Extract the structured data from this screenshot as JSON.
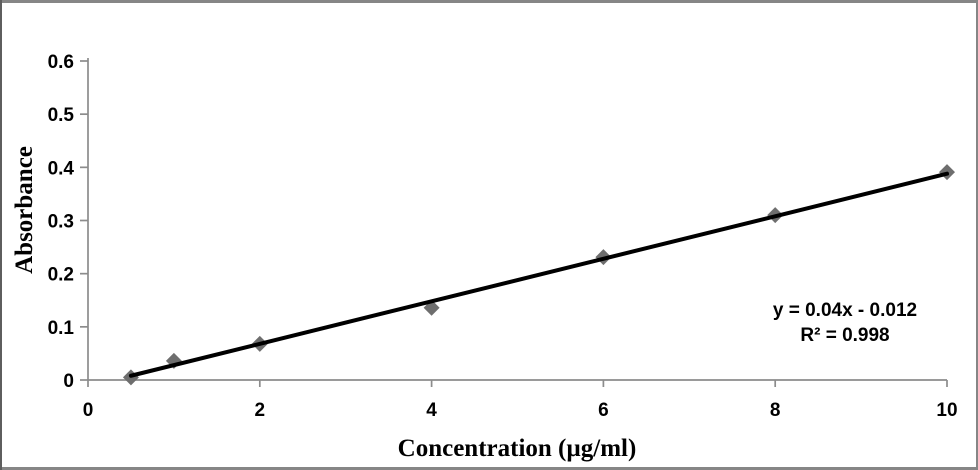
{
  "chart_data": {
    "type": "scatter",
    "title": "",
    "xlabel": "Concentration (µg/ml)",
    "ylabel": "Absorbance",
    "x": [
      0.5,
      1,
      2,
      4,
      6,
      8,
      10
    ],
    "y": [
      0.005,
      0.036,
      0.068,
      0.136,
      0.231,
      0.31,
      0.391
    ],
    "xlim": [
      0,
      10
    ],
    "ylim": [
      0,
      0.6
    ],
    "x_ticks": [
      0,
      2,
      4,
      6,
      8,
      10
    ],
    "y_ticks": [
      0,
      0.1,
      0.2,
      0.3,
      0.4,
      0.5,
      0.6
    ],
    "grid": false,
    "legend": "none",
    "marker": "diamond",
    "trendline": {
      "slope": 0.04,
      "intercept": -0.012,
      "x_start": 0.5,
      "x_end": 10
    },
    "annotations": {
      "equation": "y = 0.04x - 0.012",
      "r_squared": "R² = 0.998"
    },
    "colors": {
      "marker": "#6e6e6e",
      "trendline": "#000000",
      "axis": "#8c8c8c",
      "text": "#000000",
      "frame_border": "#868686",
      "background": "#ffffff"
    }
  }
}
